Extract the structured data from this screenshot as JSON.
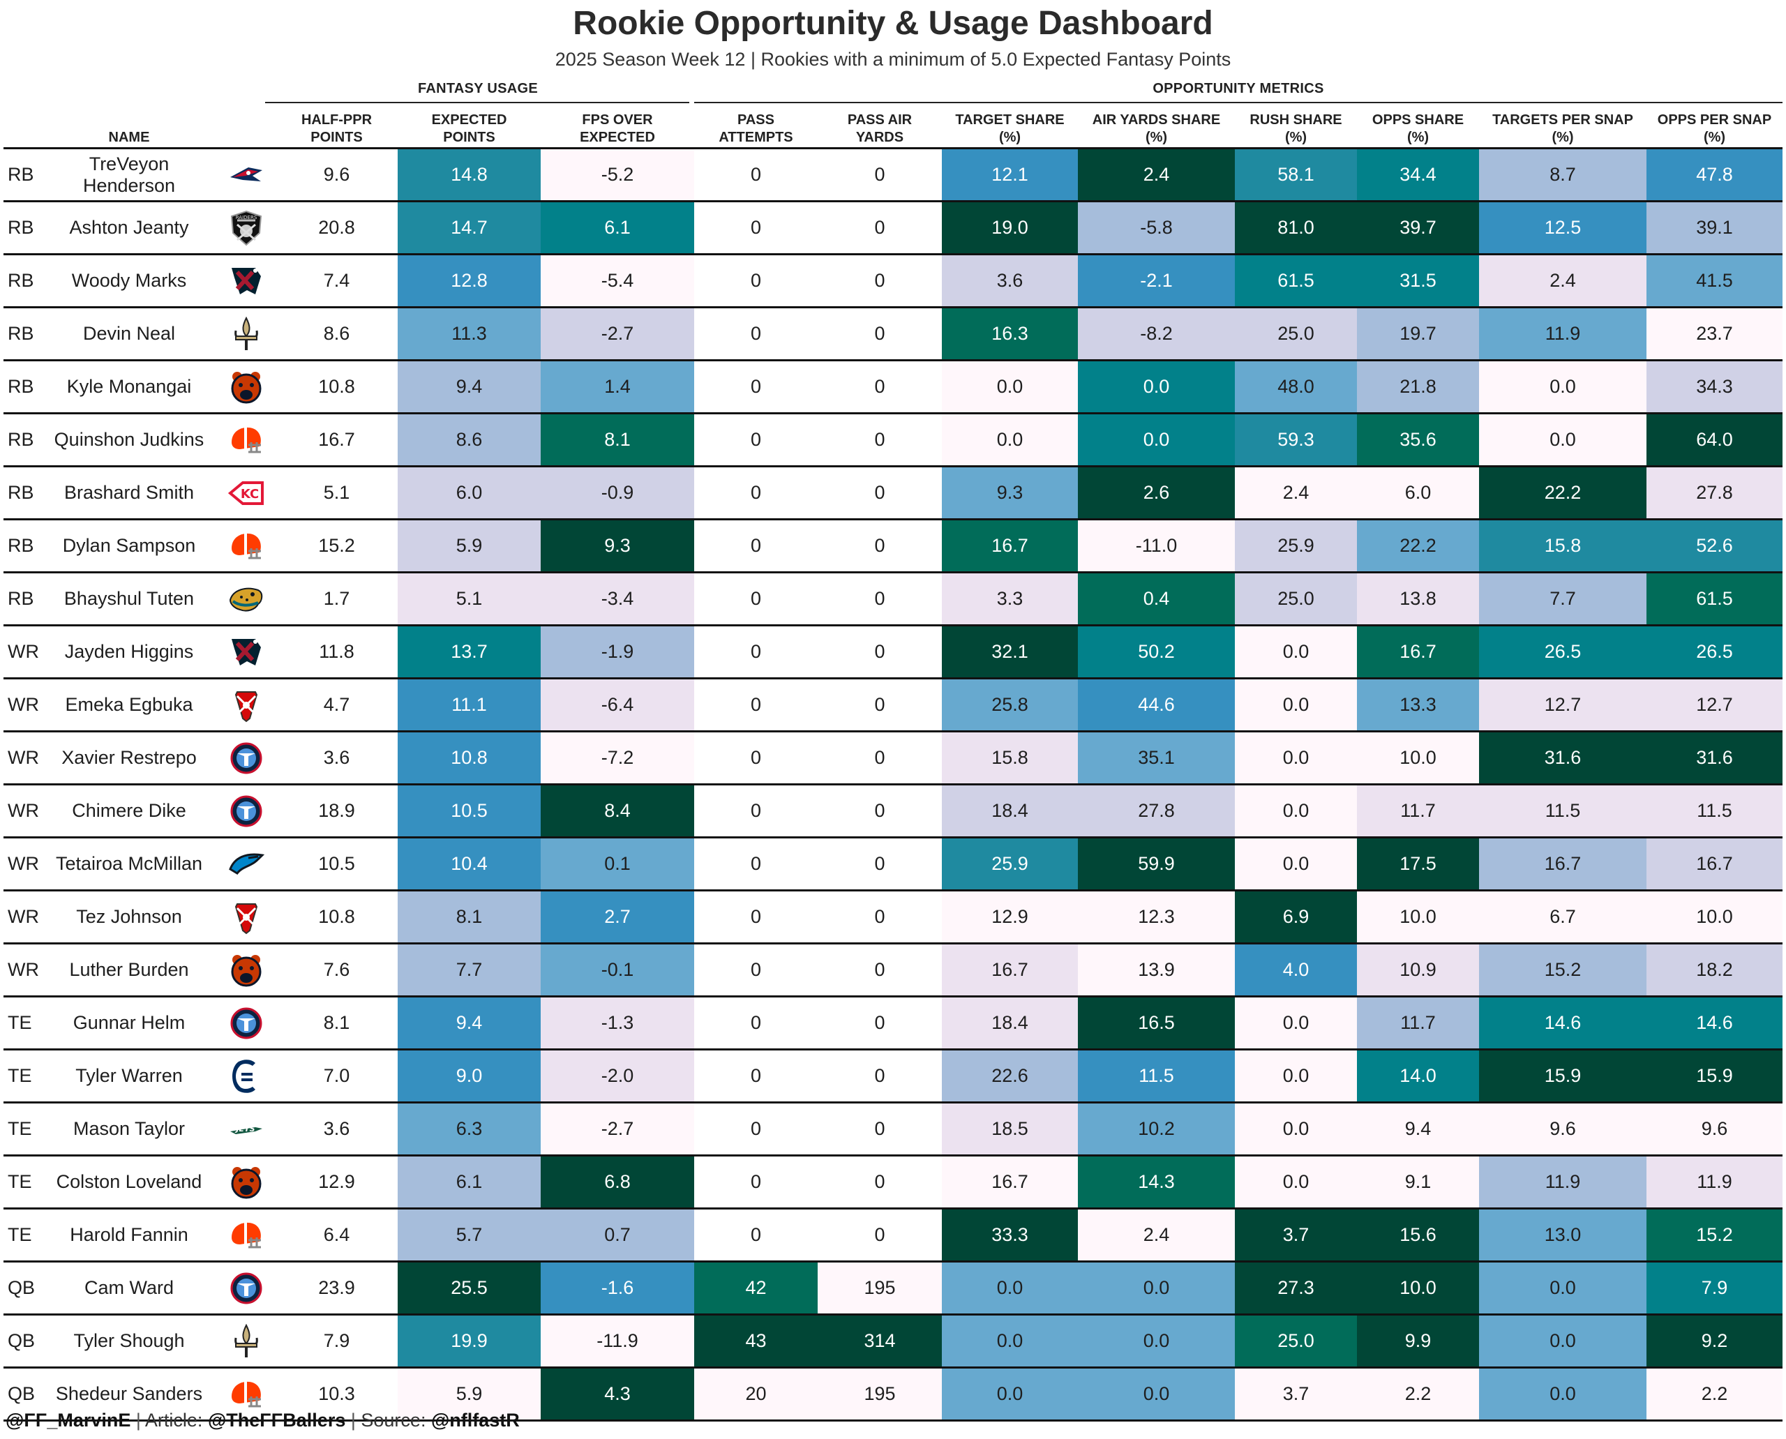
{
  "title": "Rookie Opportunity & Usage Dashboard",
  "subtitle": "2025 Season Week 12 | Rookies with a minimum of 5.0 Expected Fantasy Points",
  "groups": [
    {
      "label": "FANTASY USAGE"
    },
    {
      "label": "OPPORTUNITY METRICS"
    }
  ],
  "columns": [
    {
      "key": "pos",
      "label": ""
    },
    {
      "key": "name",
      "label": "NAME"
    },
    {
      "key": "team",
      "label": ""
    },
    {
      "key": "half_ppr",
      "label": "HALF-PPR\nPOINTS"
    },
    {
      "key": "expected",
      "label": "EXPECTED\nPOINTS"
    },
    {
      "key": "fpoe",
      "label": "FPS OVER\nEXPECTED"
    },
    {
      "key": "pass_att",
      "label": "PASS\nATTEMPTS"
    },
    {
      "key": "pass_air",
      "label": "PASS AIR\nYARDS"
    },
    {
      "key": "tgt_share",
      "label": "TARGET SHARE\n(%)"
    },
    {
      "key": "air_share",
      "label": "AIR YARDS SHARE\n(%)"
    },
    {
      "key": "rush_share",
      "label": "RUSH SHARE\n(%)"
    },
    {
      "key": "opps_share",
      "label": "OPPS SHARE\n(%)"
    },
    {
      "key": "tps",
      "label": "TARGETS PER SNAP\n(%)"
    },
    {
      "key": "ops",
      "label": "OPPS PER SNAP\n(%)"
    }
  ],
  "palette": {
    "c0": "#fff7fb",
    "c1": "#ece2f0",
    "c2": "#d0d1e6",
    "c3": "#a6bddb",
    "c4": "#67a9cf",
    "c5": "#3690c0",
    "c6": "#1f8aa0",
    "c7": "#02818a",
    "c8": "#016c59",
    "c9": "#014636",
    "plain": "#ffffff"
  },
  "chart_data": {
    "type": "table",
    "title": "Rookie Opportunity & Usage Dashboard",
    "rows": [
      {
        "pos": "RB",
        "name": "TreVeyon\nHenderson",
        "team": "patriots-logo",
        "half_ppr": "9.6",
        "expected": "14.8",
        "fpoe": "-5.2",
        "pass_att": "0",
        "pass_air": "0",
        "tgt_share": "12.1",
        "air_share": "2.4",
        "rush_share": "58.1",
        "opps_share": "34.4",
        "tps": "8.7",
        "ops": "47.8",
        "colors": {
          "expected": "c6",
          "fpoe": "c0",
          "tgt_share": "c5",
          "air_share": "c9",
          "rush_share": "c6",
          "opps_share": "c7",
          "tps": "c3",
          "ops": "c5"
        }
      },
      {
        "pos": "RB",
        "name": "Ashton Jeanty",
        "team": "raiders-logo",
        "half_ppr": "20.8",
        "expected": "14.7",
        "fpoe": "6.1",
        "pass_att": "0",
        "pass_air": "0",
        "tgt_share": "19.0",
        "air_share": "-5.8",
        "rush_share": "81.0",
        "opps_share": "39.7",
        "tps": "12.5",
        "ops": "39.1",
        "colors": {
          "expected": "c6",
          "fpoe": "c7",
          "tgt_share": "c9",
          "air_share": "c3",
          "rush_share": "c9",
          "opps_share": "c9",
          "tps": "c5",
          "ops": "c3"
        }
      },
      {
        "pos": "RB",
        "name": "Woody Marks",
        "team": "texans-logo",
        "half_ppr": "7.4",
        "expected": "12.8",
        "fpoe": "-5.4",
        "pass_att": "0",
        "pass_air": "0",
        "tgt_share": "3.6",
        "air_share": "-2.1",
        "rush_share": "61.5",
        "opps_share": "31.5",
        "tps": "2.4",
        "ops": "41.5",
        "colors": {
          "expected": "c5",
          "fpoe": "c0",
          "tgt_share": "c2",
          "air_share": "c5",
          "rush_share": "c7",
          "opps_share": "c7",
          "tps": "c1",
          "ops": "c4"
        }
      },
      {
        "pos": "RB",
        "name": "Devin Neal",
        "team": "saints-logo",
        "half_ppr": "8.6",
        "expected": "11.3",
        "fpoe": "-2.7",
        "pass_att": "0",
        "pass_air": "0",
        "tgt_share": "16.3",
        "air_share": "-8.2",
        "rush_share": "25.0",
        "opps_share": "19.7",
        "tps": "11.9",
        "ops": "23.7",
        "colors": {
          "expected": "c4",
          "fpoe": "c2",
          "tgt_share": "c8",
          "air_share": "c2",
          "rush_share": "c2",
          "opps_share": "c3",
          "tps": "c4",
          "ops": "c0"
        }
      },
      {
        "pos": "RB",
        "name": "Kyle Monangai",
        "team": "bears-logo",
        "half_ppr": "10.8",
        "expected": "9.4",
        "fpoe": "1.4",
        "pass_att": "0",
        "pass_air": "0",
        "tgt_share": "0.0",
        "air_share": "0.0",
        "rush_share": "48.0",
        "opps_share": "21.8",
        "tps": "0.0",
        "ops": "34.3",
        "colors": {
          "expected": "c3",
          "fpoe": "c4",
          "tgt_share": "c0",
          "air_share": "c7",
          "rush_share": "c4",
          "opps_share": "c3",
          "tps": "c0",
          "ops": "c2"
        }
      },
      {
        "pos": "RB",
        "name": "Quinshon Judkins",
        "team": "browns-logo",
        "half_ppr": "16.7",
        "expected": "8.6",
        "fpoe": "8.1",
        "pass_att": "0",
        "pass_air": "0",
        "tgt_share": "0.0",
        "air_share": "0.0",
        "rush_share": "59.3",
        "opps_share": "35.6",
        "tps": "0.0",
        "ops": "64.0",
        "colors": {
          "expected": "c3",
          "fpoe": "c8",
          "tgt_share": "c0",
          "air_share": "c7",
          "rush_share": "c6",
          "opps_share": "c8",
          "tps": "c0",
          "ops": "c9"
        }
      },
      {
        "pos": "RB",
        "name": "Brashard Smith",
        "team": "chiefs-logo",
        "half_ppr": "5.1",
        "expected": "6.0",
        "fpoe": "-0.9",
        "pass_att": "0",
        "pass_air": "0",
        "tgt_share": "9.3",
        "air_share": "2.6",
        "rush_share": "2.4",
        "opps_share": "6.0",
        "tps": "22.2",
        "ops": "27.8",
        "colors": {
          "expected": "c2",
          "fpoe": "c2",
          "tgt_share": "c4",
          "air_share": "c9",
          "rush_share": "c0",
          "opps_share": "c0",
          "tps": "c9",
          "ops": "c1"
        }
      },
      {
        "pos": "RB",
        "name": "Dylan Sampson",
        "team": "browns-logo",
        "half_ppr": "15.2",
        "expected": "5.9",
        "fpoe": "9.3",
        "pass_att": "0",
        "pass_air": "0",
        "tgt_share": "16.7",
        "air_share": "-11.0",
        "rush_share": "25.9",
        "opps_share": "22.2",
        "tps": "15.8",
        "ops": "52.6",
        "colors": {
          "expected": "c2",
          "fpoe": "c9",
          "tgt_share": "c8",
          "air_share": "c0",
          "rush_share": "c2",
          "opps_share": "c4",
          "tps": "c6",
          "ops": "c6"
        }
      },
      {
        "pos": "RB",
        "name": "Bhayshul Tuten",
        "team": "jaguars-logo",
        "half_ppr": "1.7",
        "expected": "5.1",
        "fpoe": "-3.4",
        "pass_att": "0",
        "pass_air": "0",
        "tgt_share": "3.3",
        "air_share": "0.4",
        "rush_share": "25.0",
        "opps_share": "13.8",
        "tps": "7.7",
        "ops": "61.5",
        "colors": {
          "expected": "c1",
          "fpoe": "c1",
          "tgt_share": "c1",
          "air_share": "c8",
          "rush_share": "c2",
          "opps_share": "c1",
          "tps": "c3",
          "ops": "c8"
        }
      },
      {
        "pos": "WR",
        "name": "Jayden Higgins",
        "team": "texans-logo",
        "half_ppr": "11.8",
        "expected": "13.7",
        "fpoe": "-1.9",
        "pass_att": "0",
        "pass_air": "0",
        "tgt_share": "32.1",
        "air_share": "50.2",
        "rush_share": "0.0",
        "opps_share": "16.7",
        "tps": "26.5",
        "ops": "26.5",
        "colors": {
          "expected": "c7",
          "fpoe": "c3",
          "tgt_share": "c9",
          "air_share": "c7",
          "rush_share": "c0",
          "opps_share": "c8",
          "tps": "c7",
          "ops": "c7"
        }
      },
      {
        "pos": "WR",
        "name": "Emeka Egbuka",
        "team": "buccaneers-logo",
        "half_ppr": "4.7",
        "expected": "11.1",
        "fpoe": "-6.4",
        "pass_att": "0",
        "pass_air": "0",
        "tgt_share": "25.8",
        "air_share": "44.6",
        "rush_share": "0.0",
        "opps_share": "13.3",
        "tps": "12.7",
        "ops": "12.7",
        "colors": {
          "expected": "c5",
          "fpoe": "c1",
          "tgt_share": "c4",
          "air_share": "c5",
          "rush_share": "c0",
          "opps_share": "c4",
          "tps": "c1",
          "ops": "c1"
        }
      },
      {
        "pos": "WR",
        "name": "Xavier Restrepo",
        "team": "titans-logo",
        "half_ppr": "3.6",
        "expected": "10.8",
        "fpoe": "-7.2",
        "pass_att": "0",
        "pass_air": "0",
        "tgt_share": "15.8",
        "air_share": "35.1",
        "rush_share": "0.0",
        "opps_share": "10.0",
        "tps": "31.6",
        "ops": "31.6",
        "colors": {
          "expected": "c5",
          "fpoe": "c0",
          "tgt_share": "c1",
          "air_share": "c4",
          "rush_share": "c0",
          "opps_share": "c0",
          "tps": "c9",
          "ops": "c9"
        }
      },
      {
        "pos": "WR",
        "name": "Chimere Dike",
        "team": "titans-logo",
        "half_ppr": "18.9",
        "expected": "10.5",
        "fpoe": "8.4",
        "pass_att": "0",
        "pass_air": "0",
        "tgt_share": "18.4",
        "air_share": "27.8",
        "rush_share": "0.0",
        "opps_share": "11.7",
        "tps": "11.5",
        "ops": "11.5",
        "colors": {
          "expected": "c5",
          "fpoe": "c9",
          "tgt_share": "c2",
          "air_share": "c2",
          "rush_share": "c0",
          "opps_share": "c1",
          "tps": "c1",
          "ops": "c1"
        }
      },
      {
        "pos": "WR",
        "name": "Tetairoa McMillan",
        "team": "panthers-logo",
        "half_ppr": "10.5",
        "expected": "10.4",
        "fpoe": "0.1",
        "pass_att": "0",
        "pass_air": "0",
        "tgt_share": "25.9",
        "air_share": "59.9",
        "rush_share": "0.0",
        "opps_share": "17.5",
        "tps": "16.7",
        "ops": "16.7",
        "colors": {
          "expected": "c5",
          "fpoe": "c4",
          "tgt_share": "c6",
          "air_share": "c9",
          "rush_share": "c0",
          "opps_share": "c9",
          "tps": "c3",
          "ops": "c2"
        }
      },
      {
        "pos": "WR",
        "name": "Tez Johnson",
        "team": "buccaneers-logo",
        "half_ppr": "10.8",
        "expected": "8.1",
        "fpoe": "2.7",
        "pass_att": "0",
        "pass_air": "0",
        "tgt_share": "12.9",
        "air_share": "12.3",
        "rush_share": "6.9",
        "opps_share": "10.0",
        "tps": "6.7",
        "ops": "10.0",
        "colors": {
          "expected": "c3",
          "fpoe": "c5",
          "tgt_share": "c0",
          "air_share": "c0",
          "rush_share": "c9",
          "opps_share": "c0",
          "tps": "c0",
          "ops": "c0"
        }
      },
      {
        "pos": "WR",
        "name": "Luther Burden",
        "team": "bears-logo",
        "half_ppr": "7.6",
        "expected": "7.7",
        "fpoe": "-0.1",
        "pass_att": "0",
        "pass_air": "0",
        "tgt_share": "16.7",
        "air_share": "13.9",
        "rush_share": "4.0",
        "opps_share": "10.9",
        "tps": "15.2",
        "ops": "18.2",
        "colors": {
          "expected": "c3",
          "fpoe": "c4",
          "tgt_share": "c1",
          "air_share": "c0",
          "rush_share": "c5",
          "opps_share": "c1",
          "tps": "c3",
          "ops": "c2"
        }
      },
      {
        "pos": "TE",
        "name": "Gunnar Helm",
        "team": "titans-logo",
        "half_ppr": "8.1",
        "expected": "9.4",
        "fpoe": "-1.3",
        "pass_att": "0",
        "pass_air": "0",
        "tgt_share": "18.4",
        "air_share": "16.5",
        "rush_share": "0.0",
        "opps_share": "11.7",
        "tps": "14.6",
        "ops": "14.6",
        "colors": {
          "expected": "c5",
          "fpoe": "c1",
          "tgt_share": "c1",
          "air_share": "c9",
          "rush_share": "c0",
          "opps_share": "c3",
          "tps": "c7",
          "ops": "c7"
        }
      },
      {
        "pos": "TE",
        "name": "Tyler Warren",
        "team": "colts-logo",
        "half_ppr": "7.0",
        "expected": "9.0",
        "fpoe": "-2.0",
        "pass_att": "0",
        "pass_air": "0",
        "tgt_share": "22.6",
        "air_share": "11.5",
        "rush_share": "0.0",
        "opps_share": "14.0",
        "tps": "15.9",
        "ops": "15.9",
        "colors": {
          "expected": "c5",
          "fpoe": "c1",
          "tgt_share": "c3",
          "air_share": "c5",
          "rush_share": "c0",
          "opps_share": "c7",
          "tps": "c9",
          "ops": "c9"
        }
      },
      {
        "pos": "TE",
        "name": "Mason Taylor",
        "team": "jets-logo",
        "half_ppr": "3.6",
        "expected": "6.3",
        "fpoe": "-2.7",
        "pass_att": "0",
        "pass_air": "0",
        "tgt_share": "18.5",
        "air_share": "10.2",
        "rush_share": "0.0",
        "opps_share": "9.4",
        "tps": "9.6",
        "ops": "9.6",
        "colors": {
          "expected": "c4",
          "fpoe": "c0",
          "tgt_share": "c1",
          "air_share": "c4",
          "rush_share": "c0",
          "opps_share": "c0",
          "tps": "c0",
          "ops": "c0"
        }
      },
      {
        "pos": "TE",
        "name": "Colston Loveland",
        "team": "bears-logo",
        "half_ppr": "12.9",
        "expected": "6.1",
        "fpoe": "6.8",
        "pass_att": "0",
        "pass_air": "0",
        "tgt_share": "16.7",
        "air_share": "14.3",
        "rush_share": "0.0",
        "opps_share": "9.1",
        "tps": "11.9",
        "ops": "11.9",
        "colors": {
          "expected": "c3",
          "fpoe": "c9",
          "tgt_share": "c0",
          "air_share": "c8",
          "rush_share": "c0",
          "opps_share": "c0",
          "tps": "c3",
          "ops": "c1"
        }
      },
      {
        "pos": "TE",
        "name": "Harold Fannin",
        "team": "browns-logo",
        "half_ppr": "6.4",
        "expected": "5.7",
        "fpoe": "0.7",
        "pass_att": "0",
        "pass_air": "0",
        "tgt_share": "33.3",
        "air_share": "2.4",
        "rush_share": "3.7",
        "opps_share": "15.6",
        "tps": "13.0",
        "ops": "15.2",
        "colors": {
          "expected": "c3",
          "fpoe": "c3",
          "tgt_share": "c9",
          "air_share": "c0",
          "rush_share": "c9",
          "opps_share": "c9",
          "tps": "c4",
          "ops": "c8"
        }
      },
      {
        "pos": "QB",
        "name": "Cam Ward",
        "team": "titans-logo",
        "half_ppr": "23.9",
        "expected": "25.5",
        "fpoe": "-1.6",
        "pass_att": "42",
        "pass_air": "195",
        "tgt_share": "0.0",
        "air_share": "0.0",
        "rush_share": "27.3",
        "opps_share": "10.0",
        "tps": "0.0",
        "ops": "7.9",
        "colors": {
          "expected": "c9",
          "fpoe": "c5",
          "pass_att": "c8",
          "pass_air": "c0",
          "tgt_share": "c4",
          "air_share": "c4",
          "rush_share": "c9",
          "opps_share": "c9",
          "tps": "c4",
          "ops": "c7"
        }
      },
      {
        "pos": "QB",
        "name": "Tyler Shough",
        "team": "saints-logo",
        "half_ppr": "7.9",
        "expected": "19.9",
        "fpoe": "-11.9",
        "pass_att": "43",
        "pass_air": "314",
        "tgt_share": "0.0",
        "air_share": "0.0",
        "rush_share": "25.0",
        "opps_share": "9.9",
        "tps": "0.0",
        "ops": "9.2",
        "colors": {
          "expected": "c6",
          "fpoe": "c0",
          "pass_att": "c9",
          "pass_air": "c9",
          "tgt_share": "c4",
          "air_share": "c4",
          "rush_share": "c8",
          "opps_share": "c9",
          "tps": "c4",
          "ops": "c9"
        }
      },
      {
        "pos": "QB",
        "name": "Shedeur Sanders",
        "team": "browns-logo",
        "half_ppr": "10.3",
        "expected": "5.9",
        "fpoe": "4.3",
        "pass_att": "20",
        "pass_air": "195",
        "tgt_share": "0.0",
        "air_share": "0.0",
        "rush_share": "3.7",
        "opps_share": "2.2",
        "tps": "0.0",
        "ops": "2.2",
        "colors": {
          "expected": "c0",
          "fpoe": "c9",
          "pass_att": "c0",
          "pass_air": "c0",
          "tgt_share": "c4",
          "air_share": "c4",
          "rush_share": "c0",
          "opps_share": "c0",
          "tps": "c4",
          "ops": "c0"
        }
      }
    ]
  },
  "footer": {
    "handle": "@FF_MarvinE",
    "sep1": "|",
    "article_label": "Article:",
    "article_handle": "@TheFFBallers",
    "sep2": "|",
    "source_label": "Source:",
    "source_handle": "@nflfastR"
  }
}
